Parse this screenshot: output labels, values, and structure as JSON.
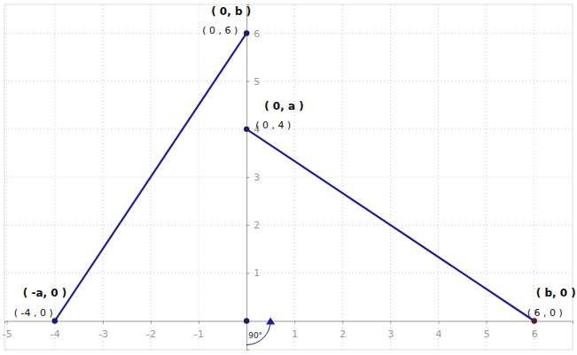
{
  "chart_data": {
    "type": "line",
    "series": [
      {
        "x": [
          -4,
          0
        ],
        "values": [
          0,
          6
        ],
        "color": "#1c1c9c"
      },
      {
        "x": [
          0,
          6
        ],
        "values": [
          4,
          0
        ],
        "color": "#1c1c9c"
      }
    ],
    "points": [
      {
        "x": 0,
        "y": 6,
        "label": "( 0, b )",
        "coords": "( 0 , 6 )"
      },
      {
        "x": 0,
        "y": 4,
        "label": "( 0, a )",
        "coords": "( 0 , 4 )"
      },
      {
        "x": -4,
        "y": 0,
        "label": "( -a, 0 )",
        "coords": "( -4 , 0 )"
      },
      {
        "x": 6,
        "y": 0,
        "label": "( b, 0 )",
        "coords": "( 6 , 0 )"
      },
      {
        "x": 0,
        "y": 0
      }
    ],
    "angle_label": "90°",
    "xlim": [
      -5.05,
      6.8
    ],
    "ylim": [
      -0.6,
      6.6
    ],
    "xticks": [
      -5,
      -4,
      -3,
      -2,
      -1,
      1,
      2,
      3,
      4,
      5,
      6
    ],
    "yticks": [
      1,
      2,
      3,
      4,
      5,
      6
    ],
    "grid": true,
    "marker": "circle",
    "line_style": "solid"
  }
}
